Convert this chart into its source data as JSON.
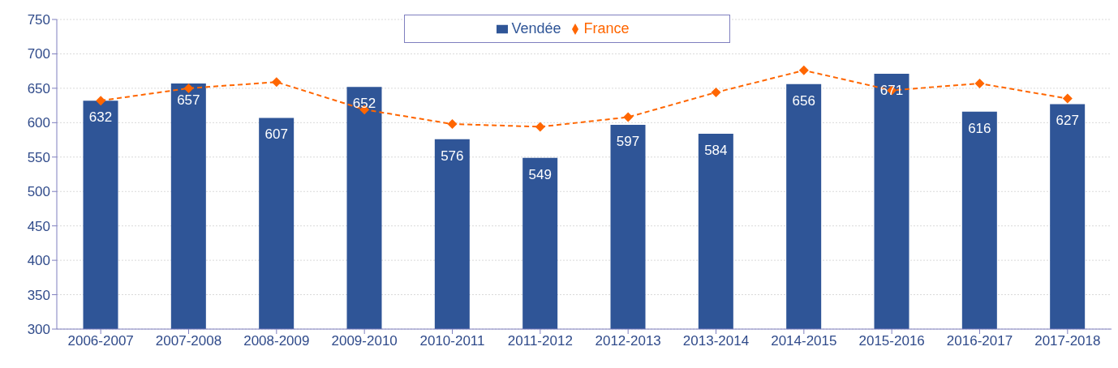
{
  "chart_data": {
    "type": "bar",
    "categories": [
      "2006-2007",
      "2007-2008",
      "2008-2009",
      "2009-2010",
      "2010-2011",
      "2011-2012",
      "2012-2013",
      "2013-2014",
      "2014-2015",
      "2015-2016",
      "2016-2017",
      "2017-2018"
    ],
    "series": [
      {
        "name": "Vendée",
        "color": "#2f5597",
        "values": [
          632,
          657,
          607,
          652,
          576,
          549,
          597,
          584,
          656,
          671,
          616,
          627
        ],
        "data_labels": true
      },
      {
        "name": "France",
        "type": "line",
        "color": "#ff6600",
        "values": [
          632,
          650,
          659,
          619,
          598,
          594,
          608,
          644,
          676,
          647,
          657,
          635
        ],
        "marker": "diamond",
        "line_style": "dashed"
      }
    ],
    "ylim": [
      300,
      750
    ],
    "yticks": [
      300,
      350,
      400,
      450,
      500,
      550,
      600,
      650,
      700,
      750
    ],
    "grid": "y",
    "legend": "top"
  }
}
